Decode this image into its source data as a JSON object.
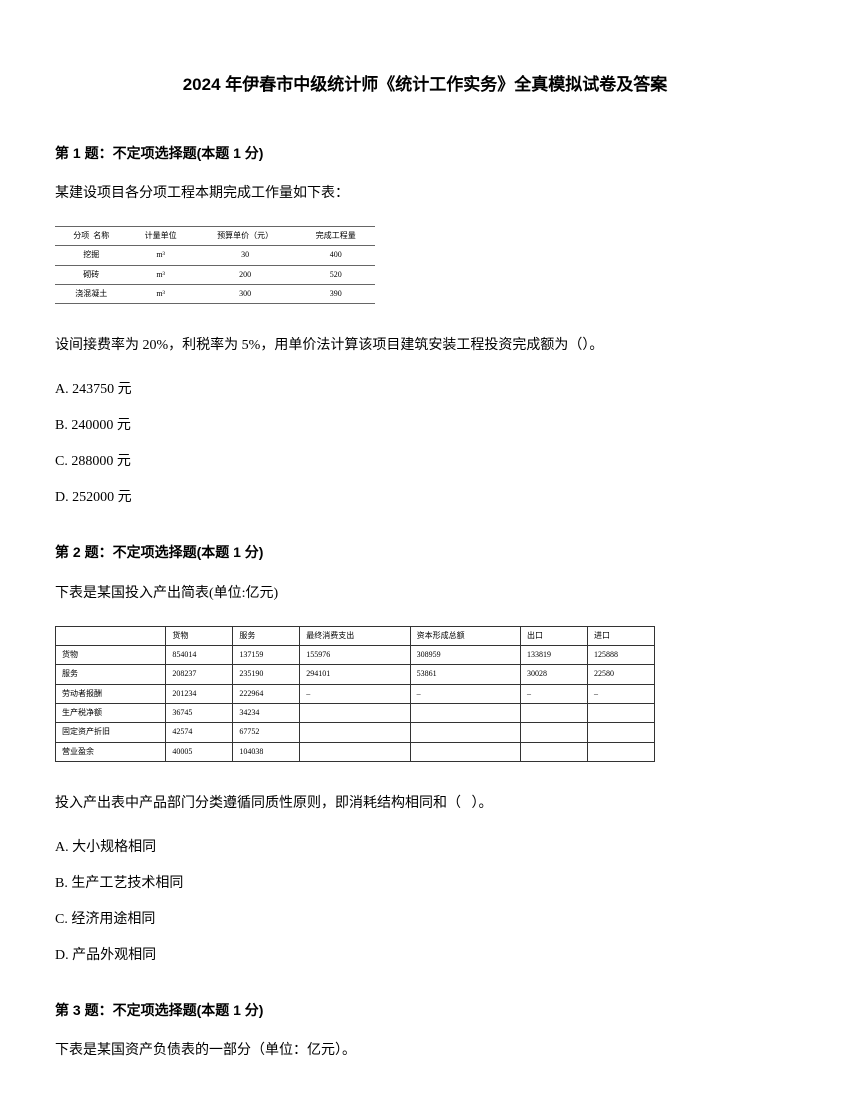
{
  "title": "2024 年伊春市中级统计师《统计工作实务》全真模拟试卷及答案",
  "q1": {
    "header": "第 1 题：不定项选择题(本题 1 分)",
    "text": "某建设项目各分项工程本期完成工作量如下表：",
    "table": {
      "headers": [
        "分项  名称",
        "计量单位",
        "预算单价（元）",
        "完成工程量"
      ],
      "rows": [
        [
          "挖掘",
          "m³",
          "30",
          "400"
        ],
        [
          "砌砖",
          "m³",
          "200",
          "520"
        ],
        [
          "浇混凝土",
          "m³",
          "300",
          "390"
        ]
      ]
    },
    "question": "设间接费率为 20%，利税率为 5%，用单价法计算该项目建筑安装工程投资完成额为（）。",
    "options": {
      "a": "A. 243750 元",
      "b": "B. 240000 元",
      "c": "C. 288000 元",
      "d": "D. 252000 元"
    }
  },
  "q2": {
    "header": "第 2 题：不定项选择题(本题 1 分)",
    "text": "下表是某国投入产出简表(单位:亿元)",
    "table": {
      "headers": [
        "",
        "货物",
        "服务",
        "最终消费支出",
        "资本形成总额",
        "出口",
        "进口"
      ],
      "rows": [
        [
          "货物",
          "854014",
          "137159",
          "155976",
          "308959",
          "133819",
          "125888"
        ],
        [
          "服务",
          "208237",
          "235190",
          "294101",
          "53861",
          "30028",
          "22580"
        ],
        [
          "劳动者报酬",
          "201234",
          "222964",
          "–",
          "–",
          "–",
          "–"
        ],
        [
          "生产税净额",
          "36745",
          "34234",
          "",
          "",
          "",
          ""
        ],
        [
          "固定资产折旧",
          "42574",
          "67752",
          "",
          "",
          "",
          ""
        ],
        [
          "营业盈余",
          "40005",
          "104038",
          "",
          "",
          "",
          ""
        ]
      ]
    },
    "question": "投入产出表中产品部门分类遵循同质性原则，即消耗结构相同和（   ）。",
    "options": {
      "a": "A. 大小规格相同",
      "b": "B. 生产工艺技术相同",
      "c": "C. 经济用途相同",
      "d": "D. 产品外观相同"
    }
  },
  "q3": {
    "header": "第 3 题：不定项选择题(本题 1 分)",
    "text": "下表是某国资产负债表的一部分（单位：亿元）。"
  }
}
